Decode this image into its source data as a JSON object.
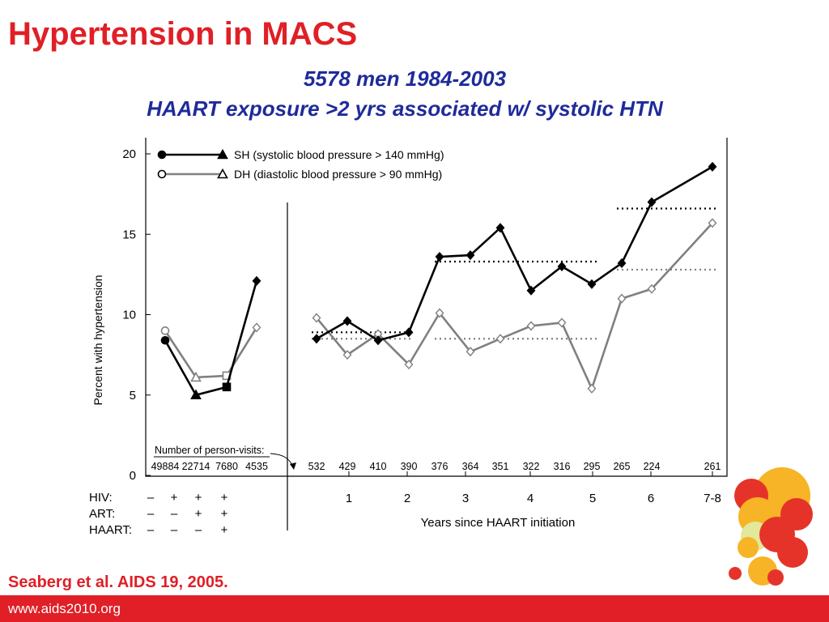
{
  "slide": {
    "title": "Hypertension in MACS",
    "subtitle_line1": "5578 men 1984-2003",
    "subtitle_line2": "HAART exposure >2 yrs associated w/ systolic HTN",
    "citation": "Seaberg et al. AIDS 19, 2005.",
    "footer_url": "www.aids2010.org"
  },
  "colors": {
    "title": "#e01f26",
    "subtitle": "#1f2b9a",
    "footer_bar": "#e01f26",
    "sh_series": "#000000",
    "dh_series": "#808080"
  },
  "chart_data": {
    "type": "line",
    "ylabel": "Percent with hypertension",
    "xlabel": "Years since HAART initiation",
    "ylim": [
      0,
      20
    ],
    "y_ticks": [
      0,
      5,
      10,
      15,
      20
    ],
    "legend_position": "top-left",
    "series": [
      {
        "name": "SH (systolic blood pressure > 140 mmHg)",
        "left_values": [
          8.4,
          5.0,
          5.5,
          12.1
        ],
        "right_values": [
          8.5,
          9.6,
          8.4,
          8.9,
          13.6,
          13.7,
          15.4,
          11.5,
          13.0,
          11.9,
          13.2,
          17.0,
          19.2
        ]
      },
      {
        "name": "DH (diastolic blood pressure > 90 mmHg)",
        "left_values": [
          9.0,
          6.1,
          6.2,
          9.2
        ],
        "right_values": [
          9.8,
          7.5,
          8.8,
          6.9,
          10.1,
          7.7,
          8.5,
          9.3,
          9.5,
          5.4,
          11.0,
          11.6,
          15.7
        ]
      }
    ],
    "left_panel": {
      "counts_label": "Number of person-visits:",
      "counts": [
        "49884",
        "22714",
        "7680",
        "4535"
      ],
      "rows": [
        {
          "label": "HIV:",
          "values": [
            "–",
            "+",
            "+",
            "+"
          ]
        },
        {
          "label": "ART:",
          "values": [
            "–",
            "–",
            "+",
            "+"
          ]
        },
        {
          "label": "HAART:",
          "values": [
            "–",
            "–",
            "–",
            "+"
          ]
        }
      ]
    },
    "right_panel": {
      "counts": [
        "532",
        "429",
        "410",
        "390",
        "376",
        "364",
        "351",
        "322",
        "316",
        "295",
        "265",
        "224",
        "261"
      ],
      "x_ticks": [
        "1",
        "2",
        "3",
        "4",
        "5",
        "6",
        "7-8"
      ]
    },
    "reference_lines": [
      {
        "series": "SH",
        "y": 8.9,
        "from_point": 0,
        "to_point": 3
      },
      {
        "series": "SH",
        "y": 13.3,
        "from_point": 4,
        "to_point": 9
      },
      {
        "series": "SH",
        "y": 16.6,
        "from_point": 10,
        "to_point": 12
      },
      {
        "series": "DH",
        "y": 8.5,
        "from_point": 0,
        "to_point": 3
      },
      {
        "series": "DH",
        "y": 8.5,
        "from_point": 4,
        "to_point": 9
      },
      {
        "series": "DH",
        "y": 12.8,
        "from_point": 10,
        "to_point": 12
      }
    ]
  }
}
